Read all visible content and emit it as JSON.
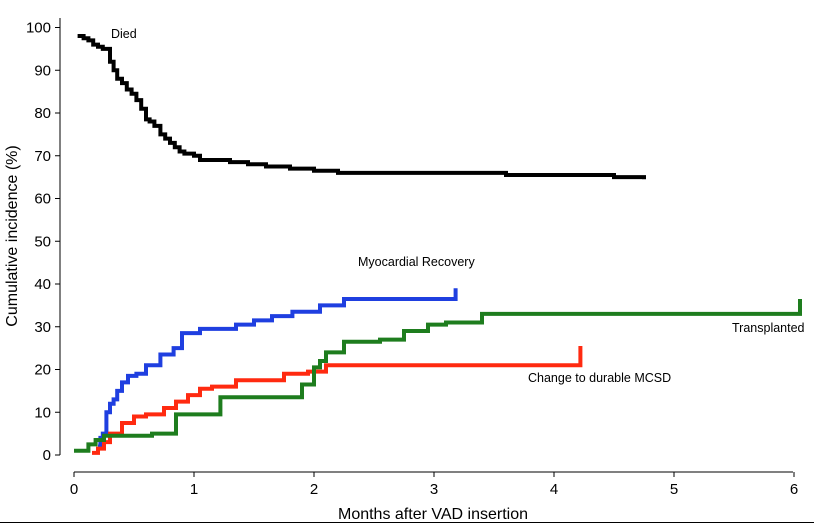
{
  "chart_data": {
    "type": "line",
    "step": true,
    "title": "",
    "xlabel": "Months after VAD insertion",
    "ylabel": "Cumulative incidence (%)",
    "xlim": [
      0,
      6.1
    ],
    "ylim": [
      0,
      100
    ],
    "xticks": [
      0,
      1,
      2,
      3,
      4,
      5,
      6
    ],
    "yticks": [
      0,
      10,
      20,
      30,
      40,
      50,
      60,
      70,
      80,
      90,
      100
    ],
    "series": [
      {
        "name": "Died",
        "color": "#000000",
        "label": "Died",
        "x": [
          0.03,
          0.08,
          0.12,
          0.16,
          0.2,
          0.24,
          0.3,
          0.33,
          0.36,
          0.4,
          0.44,
          0.48,
          0.52,
          0.56,
          0.6,
          0.63,
          0.67,
          0.72,
          0.76,
          0.8,
          0.84,
          0.88,
          0.92,
          0.96,
          1.0,
          1.05,
          1.15,
          1.3,
          1.45,
          1.6,
          1.8,
          2.0,
          2.2,
          2.5,
          3.0,
          3.6,
          4.0,
          4.5,
          4.75
        ],
        "y": [
          98,
          97.5,
          97,
          96,
          95.5,
          95,
          92,
          90,
          88,
          87,
          85.5,
          84.5,
          83,
          81,
          78.5,
          78,
          77,
          75,
          74,
          73,
          72,
          71,
          70.5,
          70.5,
          70,
          69,
          69,
          68.5,
          68,
          67.5,
          67,
          66.5,
          66,
          66,
          66,
          65.5,
          65.5,
          65,
          64.5
        ]
      },
      {
        "name": "Myocardial Recovery",
        "color": "#1f3fe0",
        "label": "Myocardial Recovery",
        "x": [
          0.2,
          0.22,
          0.24,
          0.27,
          0.3,
          0.33,
          0.36,
          0.4,
          0.45,
          0.52,
          0.6,
          0.72,
          0.83,
          0.9,
          0.95,
          1.05,
          1.35,
          1.5,
          1.65,
          1.82,
          2.05,
          2.25,
          2.6,
          3.0,
          3.18,
          3.18
        ],
        "y": [
          2,
          4,
          5,
          10,
          12,
          13,
          15,
          17,
          18.5,
          19,
          21,
          23.5,
          25,
          28.5,
          28.5,
          29.5,
          30.5,
          31.5,
          32.5,
          33.5,
          35,
          36.5,
          36.5,
          36.5,
          37,
          39
        ]
      },
      {
        "name": "Change to durable MCSD",
        "color": "#ff2a10",
        "label": "Change to durable MCSD",
        "x": [
          0.15,
          0.2,
          0.25,
          0.3,
          0.4,
          0.5,
          0.6,
          0.75,
          0.85,
          0.95,
          1.05,
          1.15,
          1.35,
          1.6,
          1.75,
          1.95,
          2.05,
          2.1,
          2.5,
          3.0,
          3.6,
          4.2,
          4.22
        ],
        "y": [
          0.5,
          1.5,
          3,
          5,
          7.5,
          9,
          9.5,
          11,
          12.5,
          14,
          15.5,
          16,
          17.5,
          17.5,
          19,
          19.5,
          19.5,
          21,
          21,
          21,
          21,
          21,
          25.5
        ]
      },
      {
        "name": "Transplanted",
        "color": "#1e7d1e",
        "label": "Transplanted",
        "x": [
          0.0,
          0.12,
          0.18,
          0.25,
          0.45,
          0.65,
          0.85,
          1.1,
          1.22,
          1.6,
          1.9,
          2.0,
          2.05,
          2.1,
          2.25,
          2.55,
          2.75,
          2.95,
          3.1,
          3.4,
          4.0,
          5.0,
          6.0,
          6.05
        ],
        "y": [
          1,
          2.5,
          3.5,
          4.5,
          4.5,
          5,
          9.5,
          9.5,
          13.5,
          13.5,
          16.5,
          20.5,
          22,
          24,
          26.5,
          27,
          29,
          30.5,
          31,
          33,
          33,
          33,
          33,
          36.5
        ]
      }
    ],
    "annotations": [
      "Died",
      "Myocardial Recovery",
      "Transplanted",
      "Change to durable MCSD"
    ]
  }
}
